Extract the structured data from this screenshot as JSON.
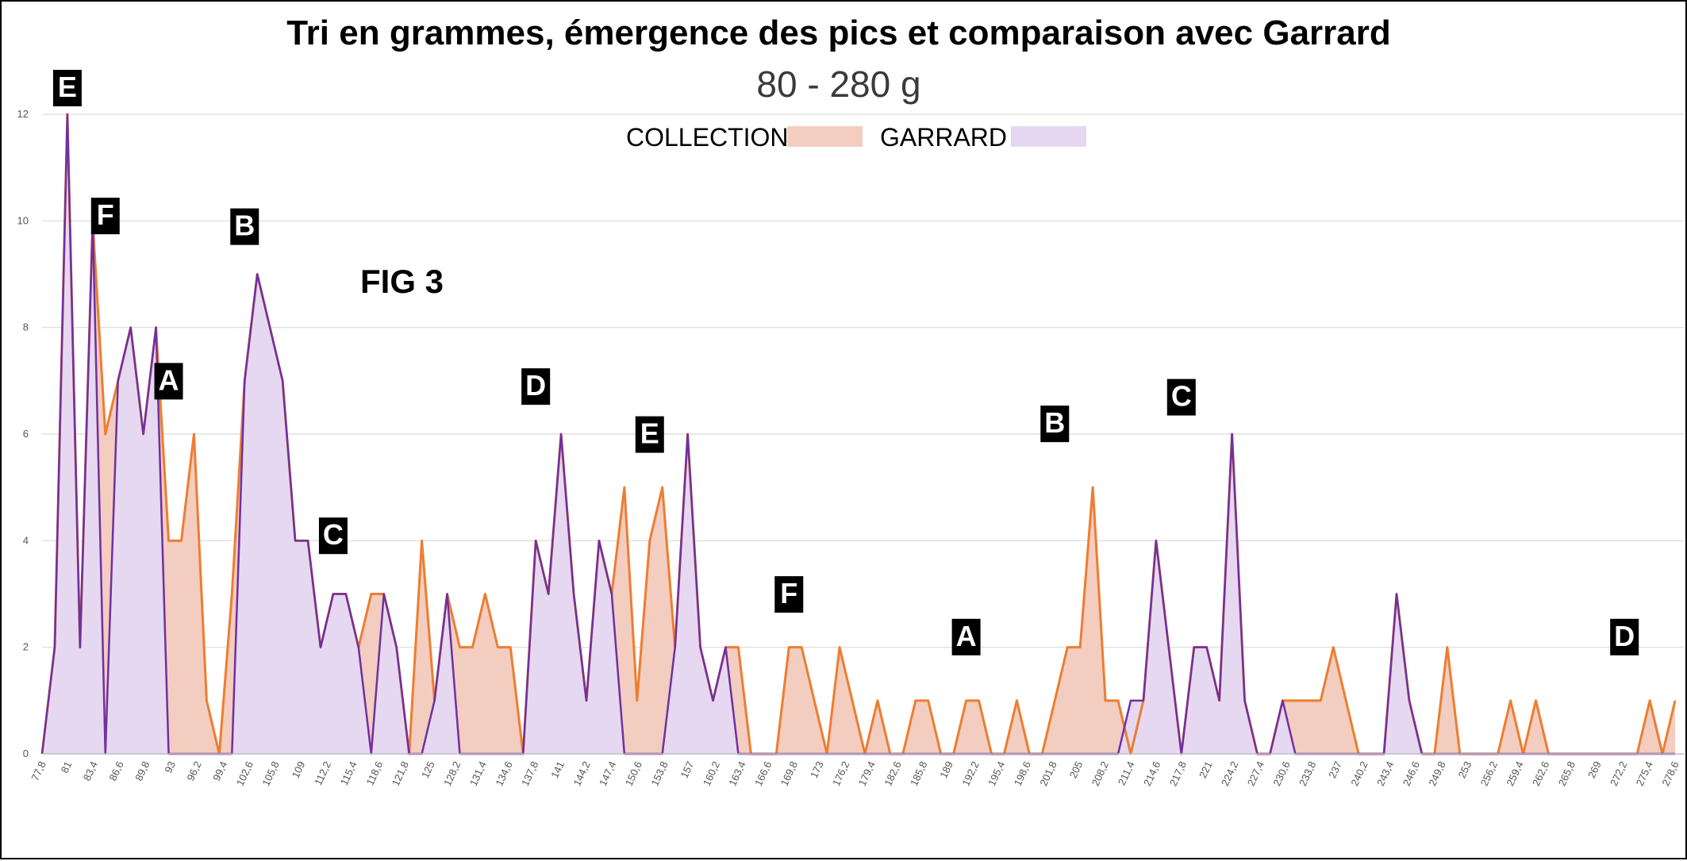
{
  "title": "Tri en grammes, émergence des pics et comparaison avec Garrard",
  "subtitle": "80 - 280 g",
  "figure_label": "FIG 3",
  "colors": {
    "collection_fill": "#f3cdbf",
    "collection_line": "#ed7d31",
    "garrard_fill": "#e6d8f0",
    "garrard_line": "#7030a0",
    "peak_label_bg": "#000000",
    "peak_label_text": "#ffffff"
  },
  "chart_data": {
    "type": "area",
    "title": "Tri en grammes, émergence des pics et comparaison avec Garrard",
    "subtitle": "80 - 280 g",
    "ylim": [
      0,
      12
    ],
    "yticks": [
      "0",
      "2",
      "4",
      "6",
      "8",
      "10",
      "12"
    ],
    "grid": true,
    "legend_position": "top-center",
    "xtick_labels": [
      "77,8",
      "81",
      "83,4",
      "86,6",
      "89,8",
      "93",
      "96,2",
      "99,4",
      "102,6",
      "105,8",
      "109",
      "112,2",
      "115,4",
      "118,6",
      "121,8",
      "125",
      "128,2",
      "131,4",
      "134,6",
      "137,8",
      "141",
      "144,2",
      "147,4",
      "150,6",
      "153,8",
      "157",
      "160,2",
      "163,4",
      "166,6",
      "169,8",
      "173",
      "176,2",
      "179,4",
      "182,6",
      "185,8",
      "189",
      "192,2",
      "195,4",
      "198,6",
      "201,8",
      "205",
      "208,2",
      "211,4",
      "214,6",
      "217,8",
      "221",
      "224,2",
      "227,4",
      "230,6",
      "233,8",
      "237",
      "240,2",
      "243,4",
      "246,6",
      "249,8",
      "253",
      "256,2",
      "259,4",
      "262,6",
      "265,8",
      "269",
      "272,2",
      "275,4",
      "278,6"
    ],
    "series": [
      {
        "name": "COLLECTION",
        "values": [
          0,
          2,
          12,
          2,
          10,
          6,
          7,
          8,
          6,
          8,
          4,
          4,
          6,
          1,
          0,
          3,
          7,
          9,
          8,
          7,
          4,
          4,
          2,
          3,
          3,
          2,
          3,
          3,
          2,
          0,
          4,
          1,
          3,
          2,
          2,
          3,
          2,
          2,
          0,
          4,
          3,
          6,
          3,
          1,
          4,
          3,
          5,
          1,
          4,
          5,
          2,
          6,
          2,
          1,
          2,
          2,
          0,
          0,
          0,
          2,
          2,
          1,
          0,
          2,
          1,
          0,
          1,
          0,
          0,
          1,
          1,
          0,
          0,
          1,
          1,
          0,
          0,
          1,
          0,
          0,
          1,
          2,
          2,
          5,
          1,
          1,
          0,
          1,
          4,
          2,
          0,
          2,
          2,
          1,
          6,
          1,
          0,
          0,
          1,
          1,
          1,
          1,
          2,
          1,
          0,
          0,
          0,
          3,
          1,
          0,
          0,
          2,
          0,
          0,
          0,
          0,
          1,
          0,
          1,
          0,
          0,
          0,
          0,
          0,
          0,
          0,
          0,
          1,
          0,
          1
        ]
      },
      {
        "name": "GARRARD",
        "values": [
          0,
          2,
          12,
          2,
          10,
          0,
          7,
          8,
          6,
          8,
          0,
          0,
          0,
          0,
          0,
          0,
          7,
          9,
          8,
          7,
          4,
          4,
          2,
          3,
          3,
          2,
          0,
          3,
          2,
          0,
          0,
          1,
          3,
          0,
          0,
          0,
          0,
          0,
          0,
          4,
          3,
          6,
          3,
          1,
          4,
          3,
          0,
          0,
          0,
          0,
          2,
          6,
          2,
          1,
          2,
          0,
          0,
          0,
          0,
          0,
          0,
          0,
          0,
          0,
          0,
          0,
          0,
          0,
          0,
          0,
          0,
          0,
          0,
          0,
          0,
          0,
          0,
          0,
          0,
          0,
          0,
          0,
          0,
          0,
          0,
          0,
          1,
          1,
          4,
          2,
          0,
          2,
          2,
          1,
          6,
          1,
          0,
          0,
          1,
          0,
          0,
          0,
          0,
          0,
          0,
          0,
          0,
          3,
          1,
          0,
          0,
          0,
          0,
          0,
          0,
          0,
          0,
          0,
          0,
          0,
          0,
          0,
          0,
          0,
          0,
          0,
          0,
          0,
          0,
          0
        ]
      }
    ],
    "annotations": [
      {
        "text": "E",
        "index": 2,
        "y": 12
      },
      {
        "text": "F",
        "index": 5,
        "y": 9.6
      },
      {
        "text": "B",
        "index": 16,
        "y": 9.4
      },
      {
        "text": "A",
        "index": 10,
        "y": 6.5
      },
      {
        "text": "C",
        "index": 23,
        "y": 3.6
      },
      {
        "text": "D",
        "index": 39,
        "y": 6.4
      },
      {
        "text": "E",
        "index": 48,
        "y": 5.5
      },
      {
        "text": "F",
        "index": 59,
        "y": 2.5
      },
      {
        "text": "A",
        "index": 73,
        "y": 1.7
      },
      {
        "text": "B",
        "index": 80,
        "y": 5.7
      },
      {
        "text": "C",
        "index": 90,
        "y": 6.2
      },
      {
        "text": "D",
        "index": 125,
        "y": 1.7
      }
    ]
  }
}
